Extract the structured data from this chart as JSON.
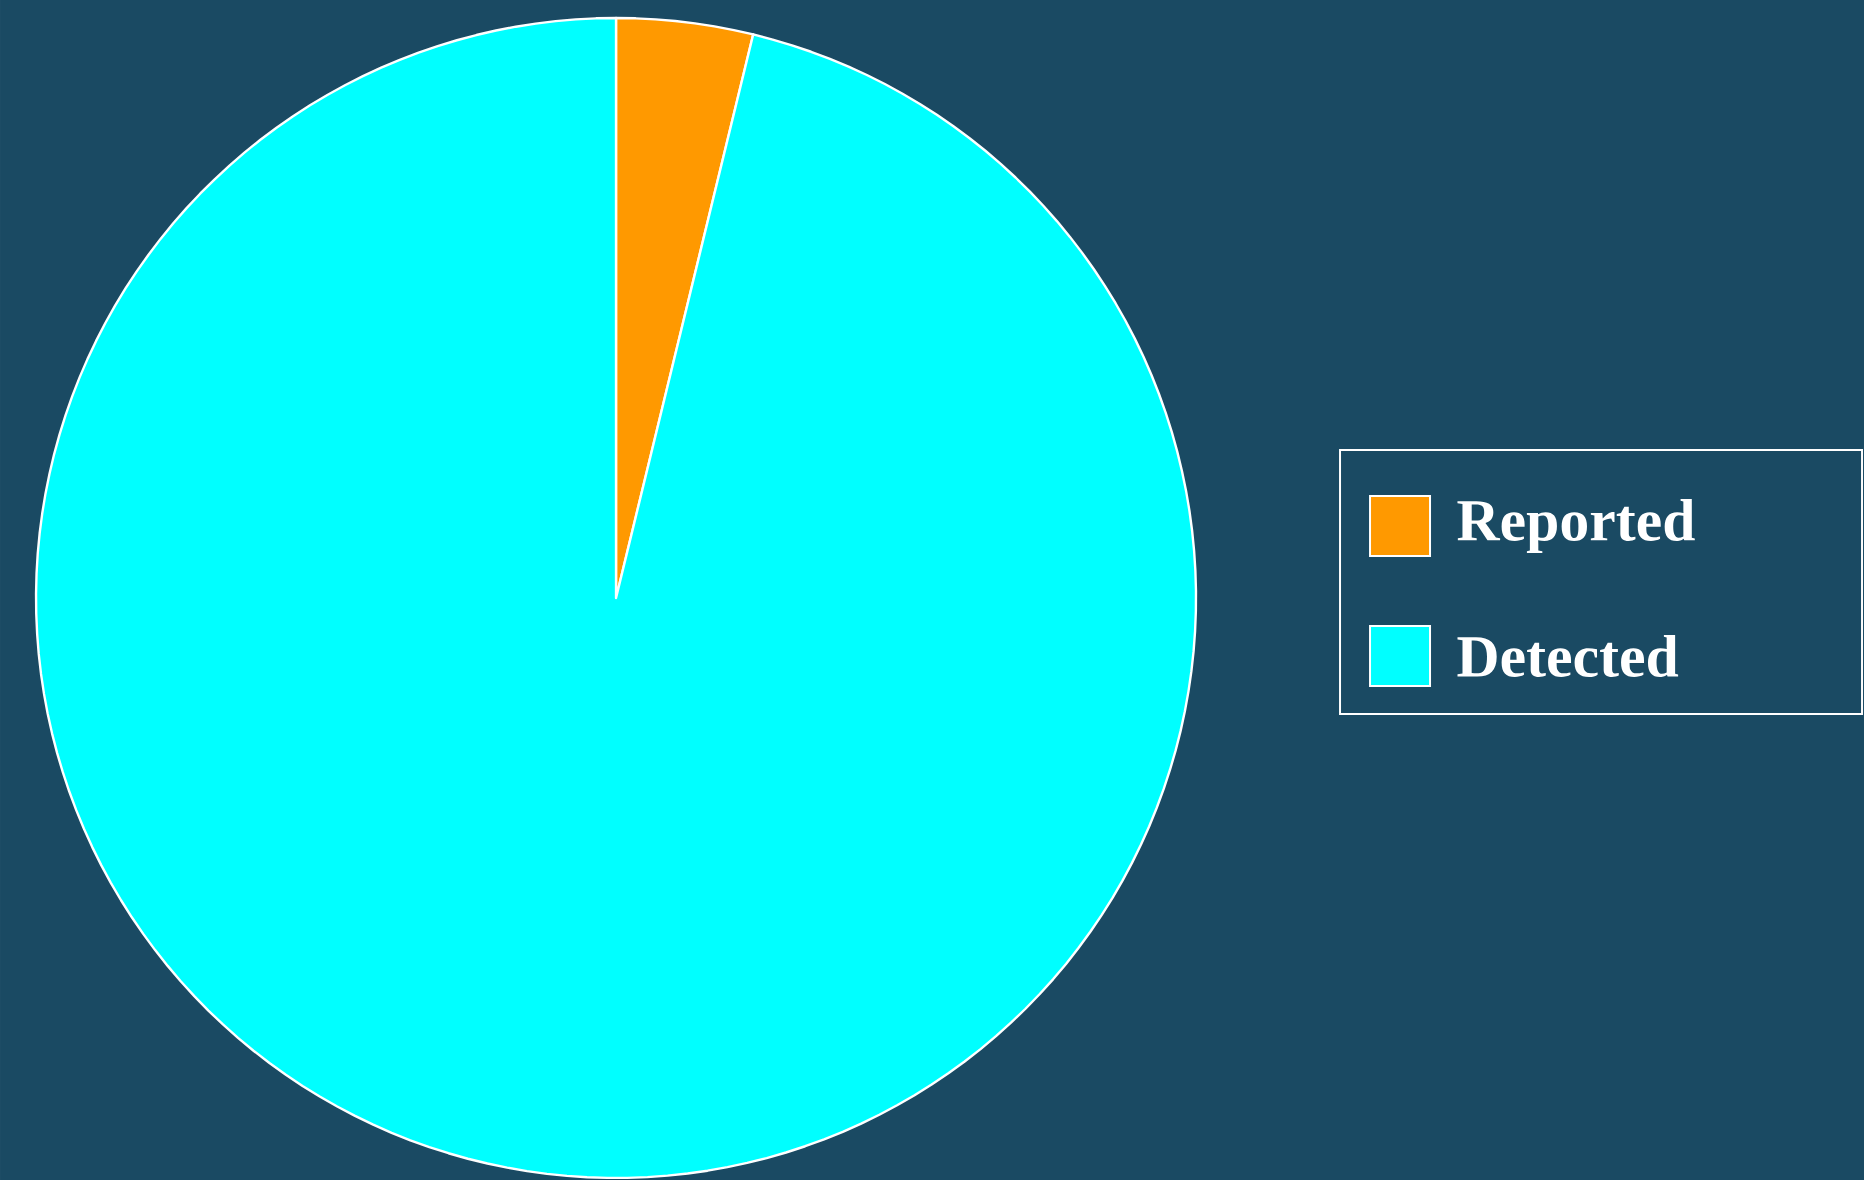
{
  "chart_data": {
    "type": "pie",
    "categories": [
      "Reported",
      "Detected"
    ],
    "values": [
      3.8,
      96.2
    ],
    "colors": [
      "#ff9900",
      "#00ffff"
    ],
    "legend": "right"
  }
}
